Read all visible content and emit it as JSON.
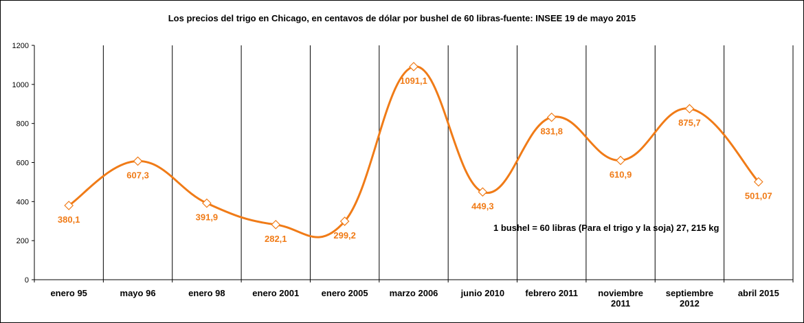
{
  "chart_data": {
    "type": "line",
    "title": "Los precios del trigo en Chicago, en centavos de dólar por bushel de 60 libras-fuente: INSEE 19 de mayo 2015",
    "categories": [
      [
        "enero 95"
      ],
      [
        "mayo 96"
      ],
      [
        "enero 98"
      ],
      [
        "enero 2001"
      ],
      [
        "enero 2005"
      ],
      [
        "marzo 2006"
      ],
      [
        "junio 2010"
      ],
      [
        "febrero 2011"
      ],
      [
        "noviembre",
        "2011"
      ],
      [
        "septiembre",
        "2012"
      ],
      [
        "abril 2015"
      ]
    ],
    "values": [
      380.1,
      607.3,
      391.9,
      282.1,
      299.2,
      1091.1,
      449.3,
      831.8,
      610.9,
      875.7,
      501.07
    ],
    "data_labels": [
      "380,1",
      "607,3",
      "391,9",
      "282,1",
      "299,2",
      "1091,1",
      "449,3",
      "831,8",
      "610,9",
      "875,7",
      "501,07"
    ],
    "yticks": [
      0,
      200,
      400,
      600,
      800,
      1000,
      1200
    ],
    "ylim": [
      0,
      1200
    ],
    "grid": "vertical lines between categories",
    "legend": "none",
    "annotation": "1 bushel = 60 libras (Para el trigo y la soja) 27, 215 kg",
    "colors": {
      "series": "#f07b17",
      "axis": "#000000",
      "marker_fill": "#ffffff"
    }
  }
}
